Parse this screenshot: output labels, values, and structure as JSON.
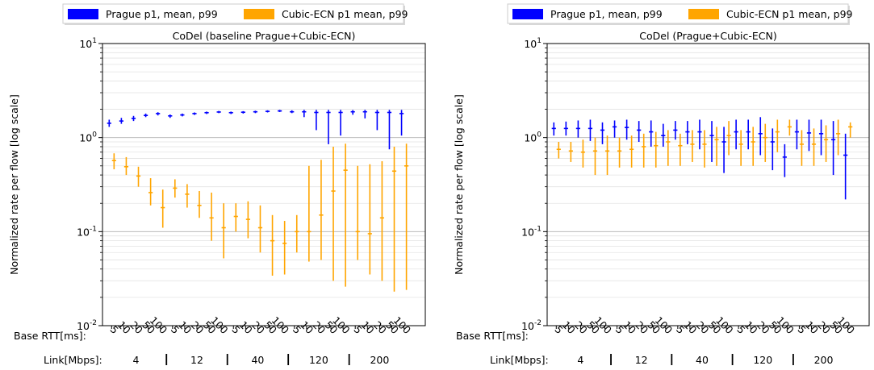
{
  "legend": [
    {
      "label": "Prague p1, mean, p99",
      "color": "#0000ff"
    },
    {
      "label": "Cubic-ECN p1 mean, p99",
      "color": "#ffa500"
    }
  ],
  "footer": {
    "rtt_label": "Base RTT[ms]:",
    "link_label": "Link[Mbps]:",
    "rtts": [
      "5",
      "10",
      "20",
      "50",
      "100"
    ],
    "links": [
      "4",
      "12",
      "40",
      "120",
      "200"
    ]
  },
  "chart_data": [
    {
      "type": "errorbar",
      "title": "CoDel (baseline Prague+Cubic-ECN)",
      "ylabel": "Normalized rate per flow [log scale]",
      "yscale": "log",
      "ylim": [
        0.01,
        10
      ],
      "ytick_labels": [
        "10^-2",
        "10^-1",
        "10^0",
        "10^1"
      ],
      "grid": true,
      "legend_position": "top",
      "series": [
        {
          "name": "Prague p1, mean, p99",
          "color": "#0000ff",
          "points": [
            {
              "link": "4",
              "rtt": "5",
              "low": 1.3,
              "mean": 1.42,
              "high": 1.55
            },
            {
              "link": "4",
              "rtt": "10",
              "low": 1.4,
              "mean": 1.5,
              "high": 1.62
            },
            {
              "link": "4",
              "rtt": "20",
              "low": 1.5,
              "mean": 1.6,
              "high": 1.7
            },
            {
              "link": "4",
              "rtt": "50",
              "low": 1.65,
              "mean": 1.72,
              "high": 1.8
            },
            {
              "link": "4",
              "rtt": "100",
              "low": 1.72,
              "mean": 1.8,
              "high": 1.86
            },
            {
              "link": "12",
              "rtt": "5",
              "low": 1.62,
              "mean": 1.7,
              "high": 1.76
            },
            {
              "link": "12",
              "rtt": "10",
              "low": 1.68,
              "mean": 1.74,
              "high": 1.8
            },
            {
              "link": "12",
              "rtt": "20",
              "low": 1.74,
              "mean": 1.8,
              "high": 1.85
            },
            {
              "link": "12",
              "rtt": "50",
              "low": 1.78,
              "mean": 1.84,
              "high": 1.89
            },
            {
              "link": "12",
              "rtt": "100",
              "low": 1.82,
              "mean": 1.87,
              "high": 1.92
            },
            {
              "link": "40",
              "rtt": "5",
              "low": 1.78,
              "mean": 1.84,
              "high": 1.89
            },
            {
              "link": "40",
              "rtt": "10",
              "low": 1.8,
              "mean": 1.86,
              "high": 1.91
            },
            {
              "link": "40",
              "rtt": "20",
              "low": 1.82,
              "mean": 1.88,
              "high": 1.93
            },
            {
              "link": "40",
              "rtt": "50",
              "low": 1.85,
              "mean": 1.9,
              "high": 1.95
            },
            {
              "link": "40",
              "rtt": "100",
              "low": 1.87,
              "mean": 1.92,
              "high": 1.97
            },
            {
              "link": "120",
              "rtt": "5",
              "low": 1.82,
              "mean": 1.88,
              "high": 1.95
            },
            {
              "link": "120",
              "rtt": "10",
              "low": 1.65,
              "mean": 1.88,
              "high": 1.97
            },
            {
              "link": "120",
              "rtt": "20",
              "low": 1.2,
              "mean": 1.85,
              "high": 1.97
            },
            {
              "link": "120",
              "rtt": "50",
              "low": 0.85,
              "mean": 1.85,
              "high": 1.97
            },
            {
              "link": "120",
              "rtt": "100",
              "low": 1.05,
              "mean": 1.85,
              "high": 1.97
            },
            {
              "link": "200",
              "rtt": "5",
              "low": 1.75,
              "mean": 1.88,
              "high": 1.96
            },
            {
              "link": "200",
              "rtt": "10",
              "low": 1.6,
              "mean": 1.88,
              "high": 1.97
            },
            {
              "link": "200",
              "rtt": "20",
              "low": 1.2,
              "mean": 1.85,
              "high": 1.97
            },
            {
              "link": "200",
              "rtt": "50",
              "low": 0.75,
              "mean": 1.85,
              "high": 1.97
            },
            {
              "link": "200",
              "rtt": "100",
              "low": 1.05,
              "mean": 1.8,
              "high": 1.97
            }
          ]
        },
        {
          "name": "Cubic-ECN p1 mean, p99",
          "color": "#ffa500",
          "points": [
            {
              "link": "4",
              "rtt": "5",
              "low": 0.46,
              "mean": 0.57,
              "high": 0.68
            },
            {
              "link": "4",
              "rtt": "10",
              "low": 0.4,
              "mean": 0.49,
              "high": 0.62
            },
            {
              "link": "4",
              "rtt": "20",
              "low": 0.3,
              "mean": 0.39,
              "high": 0.49
            },
            {
              "link": "4",
              "rtt": "50",
              "low": 0.19,
              "mean": 0.26,
              "high": 0.37
            },
            {
              "link": "4",
              "rtt": "100",
              "low": 0.11,
              "mean": 0.18,
              "high": 0.28
            },
            {
              "link": "12",
              "rtt": "5",
              "low": 0.23,
              "mean": 0.29,
              "high": 0.36
            },
            {
              "link": "12",
              "rtt": "10",
              "low": 0.18,
              "mean": 0.25,
              "high": 0.32
            },
            {
              "link": "12",
              "rtt": "20",
              "low": 0.14,
              "mean": 0.19,
              "high": 0.27
            },
            {
              "link": "12",
              "rtt": "50",
              "low": 0.08,
              "mean": 0.14,
              "high": 0.26
            },
            {
              "link": "12",
              "rtt": "100",
              "low": 0.052,
              "mean": 0.11,
              "high": 0.2
            },
            {
              "link": "40",
              "rtt": "5",
              "low": 0.1,
              "mean": 0.145,
              "high": 0.2
            },
            {
              "link": "40",
              "rtt": "10",
              "low": 0.085,
              "mean": 0.135,
              "high": 0.21
            },
            {
              "link": "40",
              "rtt": "20",
              "low": 0.06,
              "mean": 0.11,
              "high": 0.19
            },
            {
              "link": "40",
              "rtt": "50",
              "low": 0.034,
              "mean": 0.08,
              "high": 0.15
            },
            {
              "link": "40",
              "rtt": "100",
              "low": 0.035,
              "mean": 0.075,
              "high": 0.13
            },
            {
              "link": "120",
              "rtt": "5",
              "low": 0.06,
              "mean": 0.1,
              "high": 0.15
            },
            {
              "link": "120",
              "rtt": "10",
              "low": 0.048,
              "mean": 0.1,
              "high": 0.5
            },
            {
              "link": "120",
              "rtt": "20",
              "low": 0.05,
              "mean": 0.15,
              "high": 0.58
            },
            {
              "link": "120",
              "rtt": "50",
              "low": 0.03,
              "mean": 0.27,
              "high": 0.8
            },
            {
              "link": "120",
              "rtt": "100",
              "low": 0.026,
              "mean": 0.45,
              "high": 0.86
            },
            {
              "link": "200",
              "rtt": "5",
              "low": 0.05,
              "mean": 0.1,
              "high": 0.5
            },
            {
              "link": "200",
              "rtt": "10",
              "low": 0.035,
              "mean": 0.095,
              "high": 0.52
            },
            {
              "link": "200",
              "rtt": "20",
              "low": 0.03,
              "mean": 0.14,
              "high": 0.56
            },
            {
              "link": "200",
              "rtt": "50",
              "low": 0.023,
              "mean": 0.44,
              "high": 0.8
            },
            {
              "link": "200",
              "rtt": "100",
              "low": 0.024,
              "mean": 0.5,
              "high": 0.86
            }
          ]
        }
      ]
    },
    {
      "type": "errorbar",
      "title": "CoDel (Prague+Cubic-ECN)",
      "ylabel": "Normalized rate per flow [log scale]",
      "yscale": "log",
      "ylim": [
        0.01,
        10
      ],
      "ytick_labels": [
        "10^-2",
        "10^-1",
        "10^0",
        "10^1"
      ],
      "grid": true,
      "legend_position": "top",
      "series": [
        {
          "name": "Prague p1, mean, p99",
          "color": "#0000ff",
          "points": [
            {
              "link": "4",
              "rtt": "5",
              "low": 1.05,
              "mean": 1.25,
              "high": 1.45
            },
            {
              "link": "4",
              "rtt": "10",
              "low": 1.05,
              "mean": 1.25,
              "high": 1.48
            },
            {
              "link": "4",
              "rtt": "20",
              "low": 1.0,
              "mean": 1.25,
              "high": 1.52
            },
            {
              "link": "4",
              "rtt": "50",
              "low": 0.92,
              "mean": 1.25,
              "high": 1.55
            },
            {
              "link": "4",
              "rtt": "100",
              "low": 0.85,
              "mean": 1.2,
              "high": 1.45
            },
            {
              "link": "12",
              "rtt": "5",
              "low": 1.0,
              "mean": 1.3,
              "high": 1.52
            },
            {
              "link": "12",
              "rtt": "10",
              "low": 0.95,
              "mean": 1.28,
              "high": 1.55
            },
            {
              "link": "12",
              "rtt": "20",
              "low": 0.9,
              "mean": 1.2,
              "high": 1.5
            },
            {
              "link": "12",
              "rtt": "50",
              "low": 0.8,
              "mean": 1.15,
              "high": 1.52
            },
            {
              "link": "12",
              "rtt": "100",
              "low": 0.8,
              "mean": 1.05,
              "high": 1.4
            },
            {
              "link": "40",
              "rtt": "5",
              "low": 0.95,
              "mean": 1.2,
              "high": 1.5
            },
            {
              "link": "40",
              "rtt": "10",
              "low": 0.85,
              "mean": 1.15,
              "high": 1.5
            },
            {
              "link": "40",
              "rtt": "20",
              "low": 0.75,
              "mean": 1.15,
              "high": 1.55
            },
            {
              "link": "40",
              "rtt": "50",
              "low": 0.55,
              "mean": 1.05,
              "high": 1.5
            },
            {
              "link": "40",
              "rtt": "100",
              "low": 0.42,
              "mean": 0.9,
              "high": 1.3
            },
            {
              "link": "120",
              "rtt": "5",
              "low": 0.75,
              "mean": 1.15,
              "high": 1.55
            },
            {
              "link": "120",
              "rtt": "10",
              "low": 0.75,
              "mean": 1.15,
              "high": 1.55
            },
            {
              "link": "120",
              "rtt": "20",
              "low": 0.65,
              "mean": 1.1,
              "high": 1.65
            },
            {
              "link": "120",
              "rtt": "50",
              "low": 0.45,
              "mean": 0.9,
              "high": 1.25
            },
            {
              "link": "120",
              "rtt": "100",
              "low": 0.38,
              "mean": 0.62,
              "high": 0.85
            },
            {
              "link": "200",
              "rtt": "5",
              "low": 0.75,
              "mean": 1.15,
              "high": 1.55
            },
            {
              "link": "200",
              "rtt": "10",
              "low": 0.72,
              "mean": 1.12,
              "high": 1.55
            },
            {
              "link": "200",
              "rtt": "20",
              "low": 0.65,
              "mean": 1.1,
              "high": 1.55
            },
            {
              "link": "200",
              "rtt": "50",
              "low": 0.4,
              "mean": 0.95,
              "high": 1.5
            },
            {
              "link": "200",
              "rtt": "100",
              "low": 0.22,
              "mean": 0.65,
              "high": 1.1
            }
          ]
        },
        {
          "name": "Cubic-ECN p1 mean, p99",
          "color": "#ffa500",
          "points": [
            {
              "link": "4",
              "rtt": "5",
              "low": 0.6,
              "mean": 0.75,
              "high": 0.9
            },
            {
              "link": "4",
              "rtt": "10",
              "low": 0.55,
              "mean": 0.72,
              "high": 0.9
            },
            {
              "link": "4",
              "rtt": "20",
              "low": 0.48,
              "mean": 0.7,
              "high": 0.95
            },
            {
              "link": "4",
              "rtt": "50",
              "low": 0.4,
              "mean": 0.72,
              "high": 1.0
            },
            {
              "link": "4",
              "rtt": "100",
              "low": 0.4,
              "mean": 0.72,
              "high": 1.05
            },
            {
              "link": "12",
              "rtt": "5",
              "low": 0.48,
              "mean": 0.72,
              "high": 1.0
            },
            {
              "link": "12",
              "rtt": "10",
              "low": 0.48,
              "mean": 0.75,
              "high": 1.05
            },
            {
              "link": "12",
              "rtt": "20",
              "low": 0.48,
              "mean": 0.8,
              "high": 1.1
            },
            {
              "link": "12",
              "rtt": "50",
              "low": 0.48,
              "mean": 0.82,
              "high": 1.15
            },
            {
              "link": "12",
              "rtt": "100",
              "low": 0.5,
              "mean": 0.9,
              "high": 1.2
            },
            {
              "link": "40",
              "rtt": "5",
              "low": 0.5,
              "mean": 0.82,
              "high": 1.1
            },
            {
              "link": "40",
              "rtt": "10",
              "low": 0.55,
              "mean": 0.85,
              "high": 1.2
            },
            {
              "link": "40",
              "rtt": "20",
              "low": 0.48,
              "mean": 0.85,
              "high": 1.2
            },
            {
              "link": "40",
              "rtt": "50",
              "low": 0.5,
              "mean": 0.95,
              "high": 1.3
            },
            {
              "link": "40",
              "rtt": "100",
              "low": 0.65,
              "mean": 1.05,
              "high": 1.5
            },
            {
              "link": "120",
              "rtt": "5",
              "low": 0.5,
              "mean": 0.85,
              "high": 1.2
            },
            {
              "link": "120",
              "rtt": "10",
              "low": 0.5,
              "mean": 0.9,
              "high": 1.3
            },
            {
              "link": "120",
              "rtt": "20",
              "low": 0.55,
              "mean": 1.0,
              "high": 1.4
            },
            {
              "link": "120",
              "rtt": "50",
              "low": 0.7,
              "mean": 1.15,
              "high": 1.55
            },
            {
              "link": "120",
              "rtt": "100",
              "low": 1.05,
              "mean": 1.3,
              "high": 1.55
            },
            {
              "link": "200",
              "rtt": "5",
              "low": 0.5,
              "mean": 0.85,
              "high": 1.2
            },
            {
              "link": "200",
              "rtt": "10",
              "low": 0.5,
              "mean": 0.85,
              "high": 1.25
            },
            {
              "link": "200",
              "rtt": "20",
              "low": 0.55,
              "mean": 0.95,
              "high": 1.35
            },
            {
              "link": "200",
              "rtt": "50",
              "low": 0.65,
              "mean": 1.1,
              "high": 1.55
            },
            {
              "link": "200",
              "rtt": "100",
              "low": 1.0,
              "mean": 1.3,
              "high": 1.45
            }
          ]
        }
      ]
    }
  ]
}
